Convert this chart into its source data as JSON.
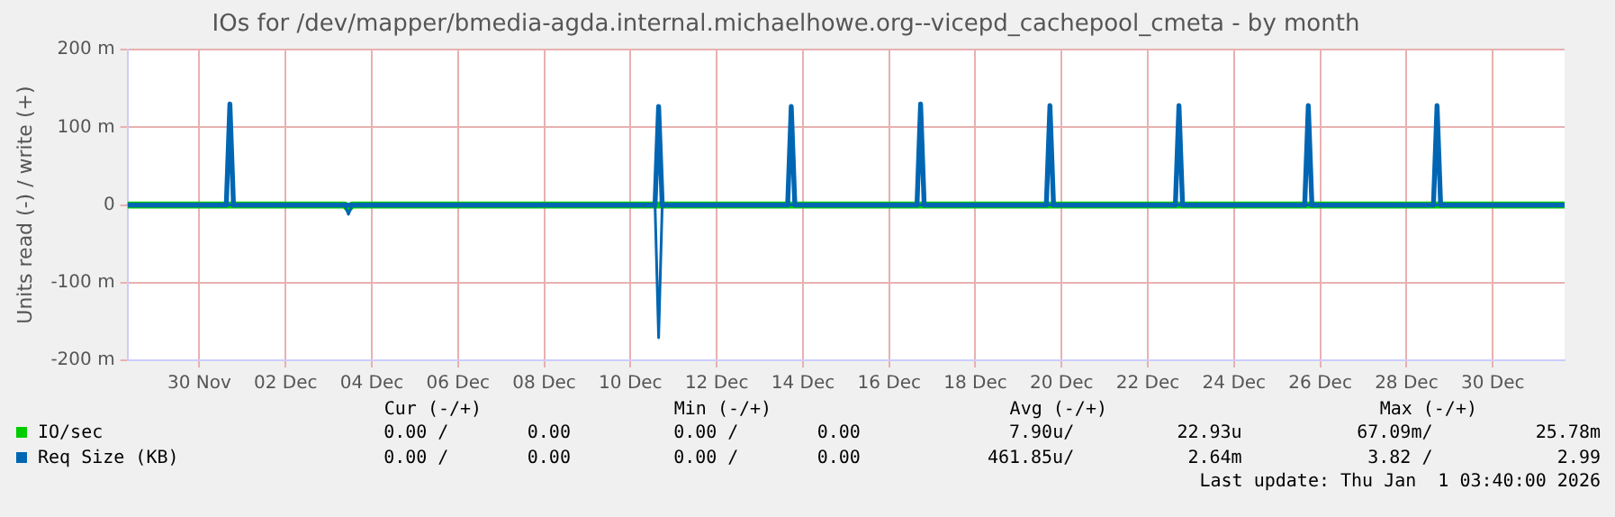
{
  "chart_data": {
    "type": "line",
    "title": "IOs for /dev/mapper/bmedia-agda.internal.michaelhowe.org--vicepd_cachepool_cmeta - by month",
    "ylabel": "Units read (-) / write (+)",
    "xlim": [
      "--11-28T08:00",
      "--12-31T16:00"
    ],
    "xticks": [
      {
        "value": "--11-30",
        "label": "30 Nov"
      },
      {
        "value": "--12-02",
        "label": "02 Dec"
      },
      {
        "value": "--12-04",
        "label": "04 Dec"
      },
      {
        "value": "--12-06",
        "label": "06 Dec"
      },
      {
        "value": "--12-08",
        "label": "08 Dec"
      },
      {
        "value": "--12-10",
        "label": "10 Dec"
      },
      {
        "value": "--12-12",
        "label": "12 Dec"
      },
      {
        "value": "--12-14",
        "label": "14 Dec"
      },
      {
        "value": "--12-16",
        "label": "16 Dec"
      },
      {
        "value": "--12-18",
        "label": "18 Dec"
      },
      {
        "value": "--12-20",
        "label": "20 Dec"
      },
      {
        "value": "--12-22",
        "label": "22 Dec"
      },
      {
        "value": "--12-24",
        "label": "24 Dec"
      },
      {
        "value": "--12-26",
        "label": "26 Dec"
      },
      {
        "value": "--12-28",
        "label": "28 Dec"
      },
      {
        "value": "--12-30",
        "label": "30 Dec"
      }
    ],
    "ylim": [
      -200,
      200
    ],
    "yticks": [
      {
        "value": 200,
        "label": "200 m"
      },
      {
        "value": 100,
        "label": "100 m"
      },
      0,
      {
        "value": -100,
        "label": "-100 m"
      },
      {
        "value": -200,
        "label": "-200 m"
      }
    ],
    "grid": true,
    "legend": "bottom",
    "marker": "none",
    "line_style": "solid",
    "series": [
      {
        "name": "IO/sec",
        "color": "#00cc00",
        "x": [
          "--11-28T08:00",
          "--12-03T09:00",
          "--12-03T11:00",
          "--12-03T13:00",
          "--12-31T16:00"
        ],
        "values": [
          0,
          0,
          -5,
          0,
          0
        ]
      },
      {
        "name": "Req Size (KB)",
        "color": "#0066b3",
        "x": [
          "--11-28T08:00",
          "--11-30T15:00",
          "--11-30T17:00",
          "--11-30T19:00",
          "--12-10T13:40",
          "--12-10T15:40",
          "--12-10T17:40",
          "--12-13T15:30",
          "--12-13T17:30",
          "--12-13T19:30",
          "--12-16T15:30",
          "--12-16T17:30",
          "--12-16T19:30",
          "--12-19T15:30",
          "--12-19T17:30",
          "--12-19T19:30",
          "--12-22T15:20",
          "--12-22T17:20",
          "--12-22T19:20",
          "--12-25T15:20",
          "--12-25T17:20",
          "--12-25T19:20",
          "--12-28T15:00",
          "--12-28T17:00",
          "--12-28T19:00",
          "--12-31T16:00"
        ],
        "values": [
          0,
          0,
          130,
          0,
          0,
          127,
          0,
          0,
          127,
          0,
          0,
          130,
          0,
          0,
          128,
          0,
          0,
          128,
          0,
          0,
          128,
          0,
          0,
          128,
          0,
          0
        ]
      },
      {
        "color": "#0066b3",
        "x": [
          "--11-28T08:00",
          "--12-03T09:00",
          "--12-03T11:00",
          "--12-03T13:00",
          "--12-10T13:40",
          "--12-10T15:40",
          "--12-10T17:40",
          "--12-31T16:00"
        ],
        "values": [
          0,
          0,
          -12,
          0,
          0,
          -171,
          0,
          0
        ]
      }
    ],
    "annotations": [
      "Cur (-/+)",
      "Min (-/+)",
      "Avg (-/+)",
      "Max (-/+)",
      "0.00 /",
      "0.00",
      "0.00 /",
      "0.00",
      "7.90u/",
      "22.93u",
      "67.09m/",
      "25.78m",
      "0.00 /",
      "0.00",
      "0.00 /",
      "0.00",
      "461.85u/",
      "2.64m",
      "3.82 /",
      "2.99",
      "Last update: Thu Jan  1 03:40:00 2026"
    ]
  }
}
